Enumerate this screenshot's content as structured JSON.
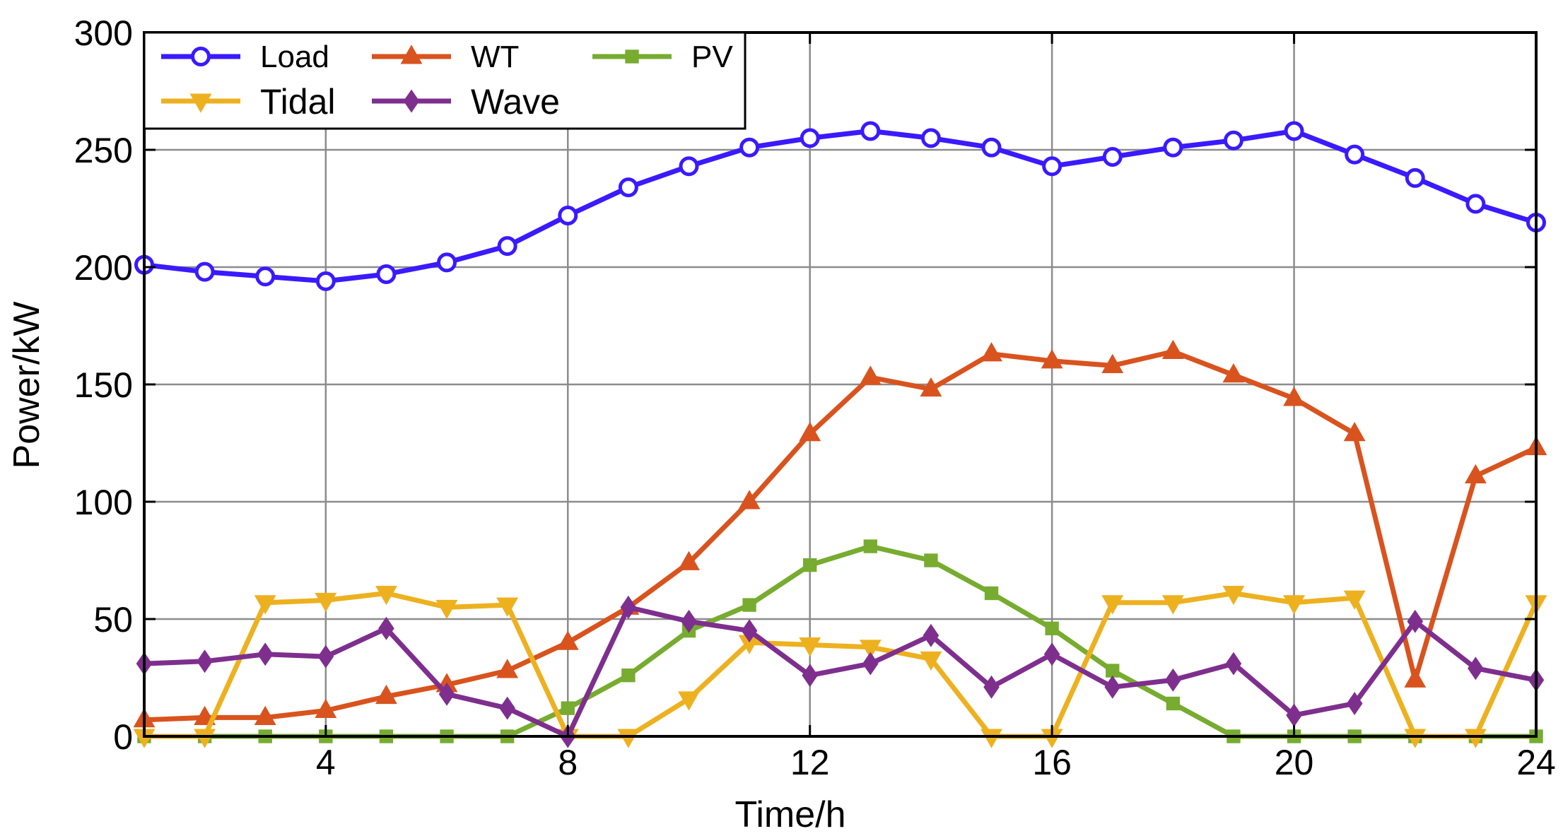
{
  "chart_data": {
    "type": "line",
    "title": "",
    "xlabel": "Time/h",
    "ylabel": "Power/kW",
    "xlim": [
      1,
      24
    ],
    "ylim": [
      0,
      300
    ],
    "xticks": [
      4,
      8,
      12,
      16,
      20,
      24
    ],
    "yticks": [
      0,
      50,
      100,
      150,
      200,
      250,
      300
    ],
    "grid": true,
    "legend": {
      "placement": "top-left",
      "columns": 3
    },
    "x": [
      1,
      2,
      3,
      4,
      5,
      6,
      7,
      8,
      9,
      10,
      11,
      12,
      13,
      14,
      15,
      16,
      17,
      18,
      19,
      20,
      21,
      22,
      23,
      24
    ],
    "series": [
      {
        "name": "Load",
        "color": "#3a1aff",
        "marker": "circle",
        "values": [
          201,
          198,
          196,
          194,
          197,
          202,
          209,
          222,
          234,
          243,
          251,
          255,
          258,
          255,
          251,
          243,
          247,
          251,
          254,
          258,
          248,
          238,
          227,
          219
        ]
      },
      {
        "name": "WT",
        "color": "#d9531e",
        "marker": "triangle-up",
        "values": [
          7,
          8,
          8,
          11,
          17,
          22,
          28,
          40,
          55,
          74,
          100,
          129,
          153,
          148,
          163,
          160,
          158,
          164,
          154,
          144,
          129,
          24,
          111,
          123
        ]
      },
      {
        "name": "PV",
        "color": "#77ac30",
        "marker": "square",
        "values": [
          0,
          0,
          0,
          0,
          0,
          0,
          0,
          12,
          26,
          45,
          56,
          73,
          81,
          75,
          61,
          46,
          28,
          14,
          0,
          0,
          0,
          0,
          0,
          0
        ]
      },
      {
        "name": "Tidal",
        "color": "#edb120",
        "marker": "triangle-down",
        "values": [
          0,
          0,
          57,
          58,
          61,
          55,
          56,
          0,
          0,
          16,
          40,
          39,
          38,
          33,
          0,
          0,
          57,
          57,
          61,
          57,
          59,
          0,
          0,
          57
        ]
      },
      {
        "name": "Wave",
        "color": "#7e2f8e",
        "marker": "diamond",
        "values": [
          31,
          32,
          35,
          34,
          46,
          18,
          12,
          0,
          55,
          49,
          45,
          26,
          31,
          43,
          21,
          35,
          21,
          24,
          31,
          9,
          14,
          49,
          29,
          24
        ]
      }
    ]
  }
}
